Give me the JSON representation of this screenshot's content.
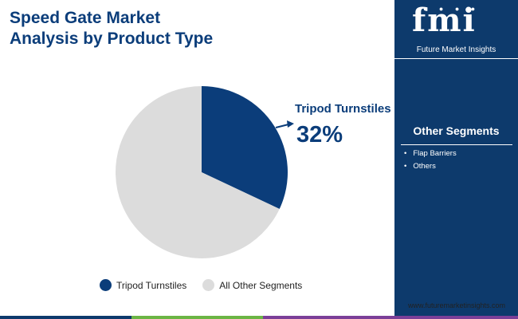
{
  "header": {
    "title_line1": "Speed Gate Market",
    "title_line2": "Analysis by Product Type"
  },
  "chart_data": {
    "type": "pie",
    "slices": [
      {
        "name": "Tripod Turnstiles",
        "value": 32,
        "color": "#0b3d7a"
      },
      {
        "name": "All Other Segments",
        "value": 68,
        "color": "#dcdcdc"
      }
    ],
    "callout": {
      "label": "Tripod Turnstiles",
      "value_text": "32%"
    },
    "legend": [
      "Tripod Turnstiles",
      "All Other Segments"
    ]
  },
  "brand": {
    "logo_text": "fmi",
    "name": "Future Market Insights",
    "website": "www.futuremarketinsights.com"
  },
  "side_panel": {
    "title": "Other Segments",
    "items": [
      "Flap Barriers",
      "Others"
    ]
  },
  "colors": {
    "primary": "#0b3d7a",
    "panel": "#0d3a6c",
    "other": "#dcdcdc",
    "bar_blue": "#0d3a6c",
    "bar_green": "#6bb544",
    "bar_purple": "#7b3f98"
  }
}
